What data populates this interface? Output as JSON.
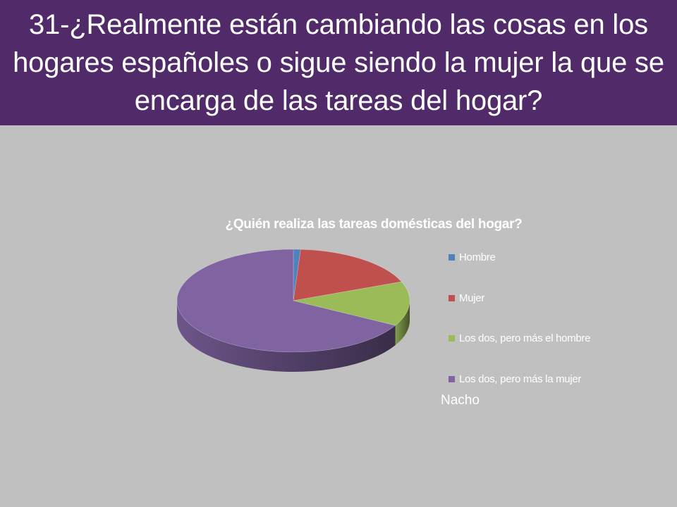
{
  "slide": {
    "title": "31-¿Realmente están cambiando las cosas en los hogares españoles o sigue siendo la mujer la que se encarga de las tareas del hogar?",
    "author": "Nacho"
  },
  "colors": {
    "title_band": "#512a6a",
    "background": "#c0c0c0"
  },
  "chart_data": {
    "type": "pie",
    "style": "3d",
    "title": "¿Quién realiza las tareas domésticas del hogar?",
    "legend_position": "right",
    "categories": [
      "Hombre",
      "Mujer",
      "Los dos, pero más el hombre",
      "Los dos, pero más la mujer"
    ],
    "values": [
      1,
      18,
      14,
      67
    ],
    "colors": [
      "#4f81bd",
      "#c0504d",
      "#9bbb59",
      "#8064a2"
    ]
  }
}
